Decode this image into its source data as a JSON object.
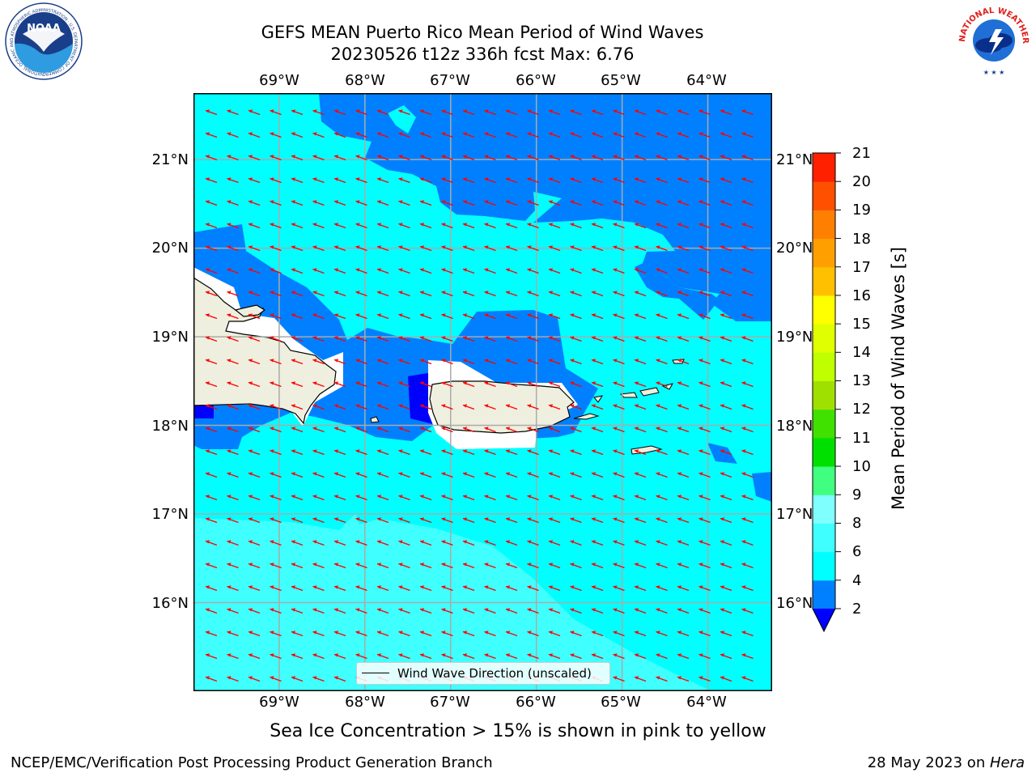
{
  "title": {
    "line1": "GEFS MEAN Puerto Rico Mean Period of Wind Waves",
    "line2": "20230526 t12z 336h fcst   Max: 6.76"
  },
  "axes": {
    "top_ticks": [
      "69°W",
      "68°W",
      "67°W",
      "66°W",
      "65°W",
      "64°W"
    ],
    "bottom_ticks": [
      "69°W",
      "68°W",
      "67°W",
      "66°W",
      "65°W",
      "64°W"
    ],
    "left_ticks": [
      "21°N",
      "20°N",
      "19°N",
      "18°N",
      "17°N",
      "16°N"
    ],
    "right_ticks": [
      "21°N",
      "20°N",
      "19°N",
      "18°N",
      "17°N",
      "16°N"
    ],
    "lon_values": [
      -69,
      -68,
      -67,
      -66,
      -65,
      -64
    ],
    "lat_values": [
      21,
      20,
      19,
      18,
      17,
      16
    ],
    "lon_range": [
      -70.0,
      -63.25
    ],
    "lat_range": [
      15.0,
      21.75
    ]
  },
  "legend": {
    "label": "Wind Wave Direction (unscaled)"
  },
  "colorbar": {
    "label": "Mean Period of Wind Waves [s]",
    "tick_labels": [
      "21",
      "20",
      "19",
      "18",
      "17",
      "16",
      "15",
      "14",
      "13",
      "12",
      "11",
      "10",
      "9",
      "8",
      "6",
      "4",
      "2"
    ],
    "levels": [
      2,
      4,
      6,
      8,
      9,
      10,
      11,
      12,
      13,
      14,
      15,
      16,
      17,
      18,
      19,
      20,
      21
    ],
    "colors": [
      "#0080ff",
      "#00ffff",
      "#40ffff",
      "#80ffff",
      "#40ff80",
      "#00e000",
      "#40e000",
      "#a0e000",
      "#c0ff00",
      "#e0ff00",
      "#ffff00",
      "#ffc000",
      "#ffa000",
      "#ff8000",
      "#ff5000",
      "#ff2000"
    ],
    "under_color": "#0000ff"
  },
  "colors": {
    "period_2_4": "#0080ff",
    "period_4_6": "#00ffff",
    "period_6_8": "#40ffff",
    "period_under_2": "#0000ff",
    "land": "#efefdf",
    "arrows": "#ff0000",
    "grid": "#aaaaaa"
  },
  "direction_arrows": {
    "heading": "toward west-northwest"
  },
  "note": "Sea Ice Concentration > 15% is shown in pink to yellow",
  "footer": {
    "left": "NCEP/EMC/Verification Post Processing Product Generation Branch",
    "date_prefix": "28 May 2023 on ",
    "host": "Hera"
  },
  "logos": {
    "noaa": "NOAA",
    "noaa_ring": "NATIONAL OCEANIC AND ATMOSPHERIC ADMINISTRATION · U.S. DEPARTMENT OF COMMERCE",
    "nws_ring": "NATIONAL WEATHER SERVICE"
  }
}
